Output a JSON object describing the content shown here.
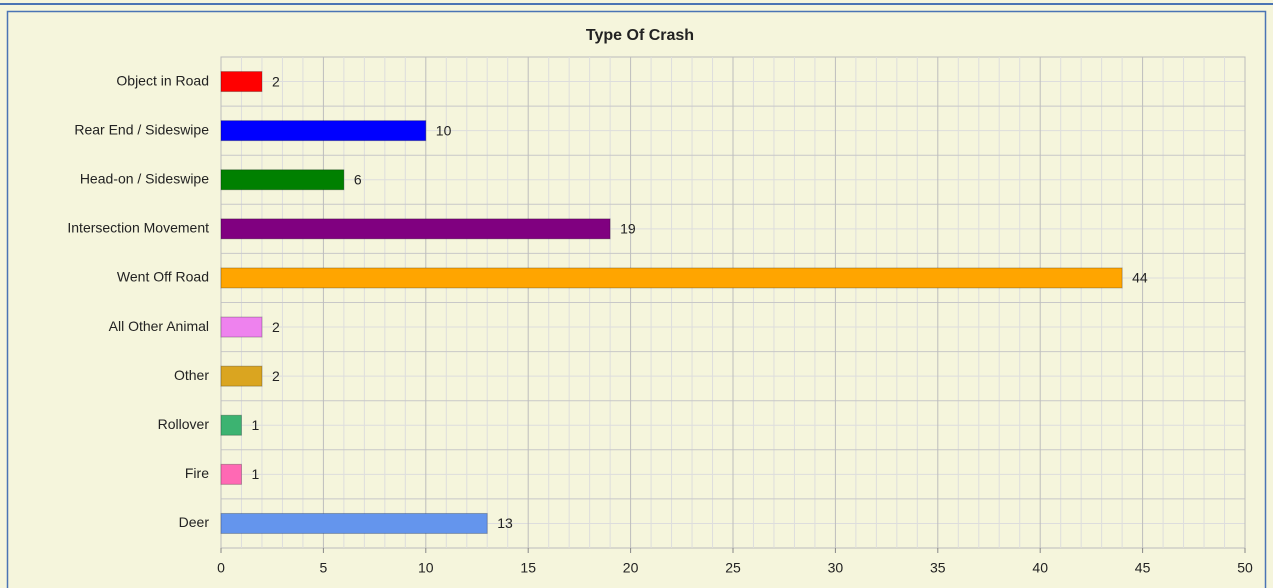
{
  "chart_data": {
    "type": "bar",
    "orientation": "horizontal",
    "title": "Type Of Crash",
    "categories": [
      "Object in Road",
      "Rear End / Sideswipe",
      "Head-on / Sideswipe",
      "Intersection Movement",
      "Went Off Road",
      "All Other Animal",
      "Other",
      "Rollover",
      "Fire",
      "Deer"
    ],
    "values": [
      2,
      10,
      6,
      19,
      44,
      2,
      2,
      1,
      1,
      13
    ],
    "colors": [
      "#ff0000",
      "#0000ff",
      "#008000",
      "#800080",
      "#ffa500",
      "#ee82ee",
      "#daa520",
      "#3cb371",
      "#ff69b4",
      "#6495ed"
    ],
    "xlim": [
      0,
      50
    ],
    "xticks": [
      0,
      5,
      10,
      15,
      20,
      25,
      30,
      35,
      40,
      45,
      50
    ],
    "grid": true
  }
}
